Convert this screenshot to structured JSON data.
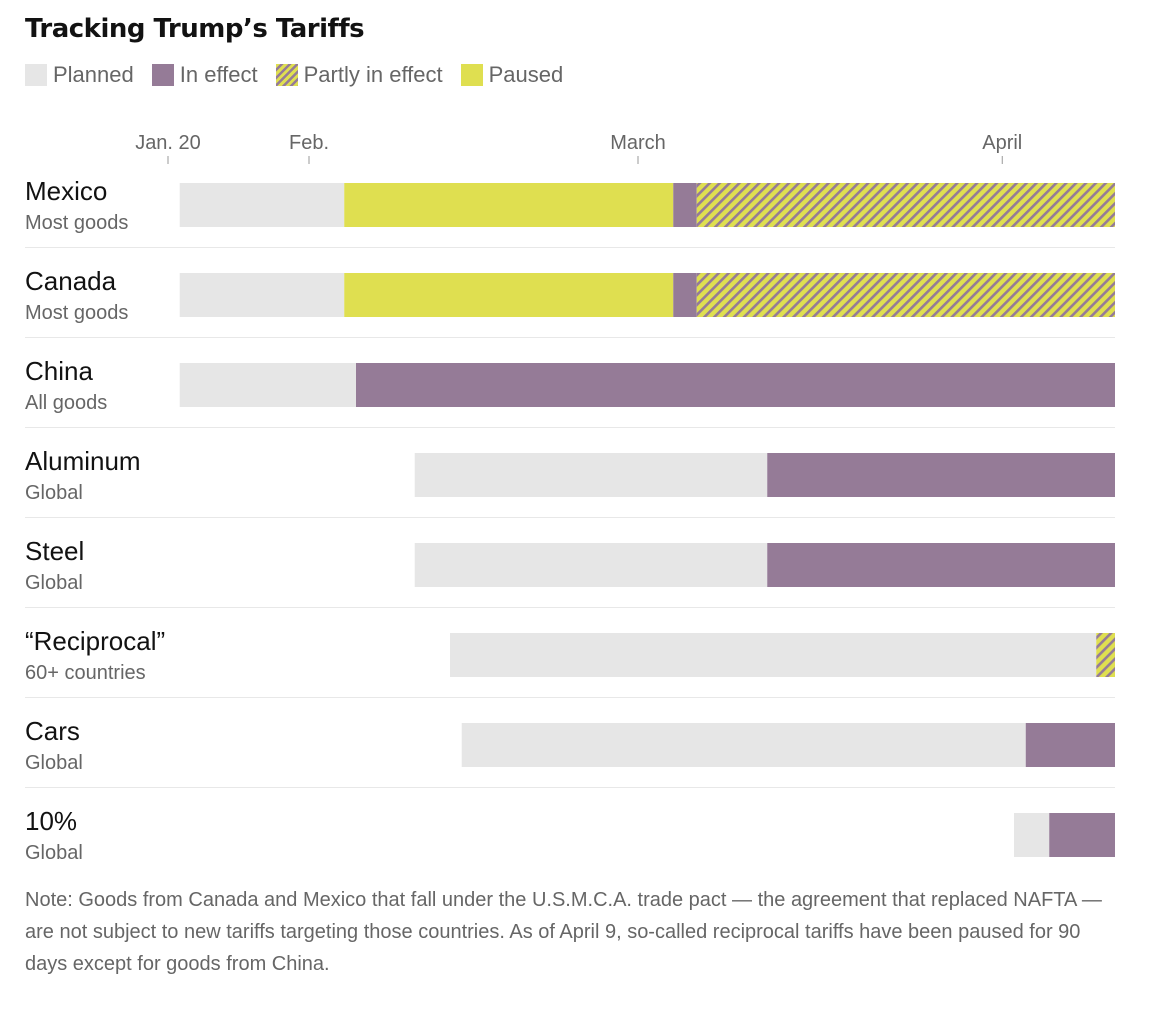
{
  "title": "Tracking Trump’s Tariffs",
  "legend": [
    {
      "key": "planned",
      "label": "Planned"
    },
    {
      "key": "in_effect",
      "label": "In effect"
    },
    {
      "key": "partly",
      "label": "Partly in effect"
    },
    {
      "key": "paused",
      "label": "Paused"
    }
  ],
  "note": "Note: Goods from Canada and Mexico that fall under the U.S.M.C.A. trade pact — the agreement that replaced NAFTA — are not subject to new tariffs targeting those countries. As of April 9, so-called reciprocal tariffs have been paused for 90 days except for goods from China.",
  "colors": {
    "planned": "#e6e6e6",
    "in_effect": "#957b97",
    "paused": "#dfdf50",
    "partly_stripe": "#957b97",
    "partly_base": "#dfdf50"
  },
  "chart_data": {
    "type": "bar",
    "orientation": "horizontal-timeline",
    "x_axis": {
      "ticks": [
        {
          "label": "Jan. 20",
          "date": "2025-01-20"
        },
        {
          "label": "Feb.",
          "date": "2025-02-01"
        },
        {
          "label": "March",
          "date": "2025-03-01"
        },
        {
          "label": "April",
          "date": "2025-04-01"
        }
      ],
      "range": [
        "2025-01-20",
        "2025-04-12"
      ]
    },
    "series": [
      {
        "key": "planned",
        "name": "Planned"
      },
      {
        "key": "in_effect",
        "name": "In effect"
      },
      {
        "key": "partly",
        "name": "Partly in effect"
      },
      {
        "key": "paused",
        "name": "Paused"
      }
    ],
    "rows": [
      {
        "name": "Mexico",
        "sub": "Most goods",
        "segments": [
          {
            "status": "planned",
            "start": "2025-01-21",
            "end": "2025-02-04"
          },
          {
            "status": "paused",
            "start": "2025-02-04",
            "end": "2025-03-04"
          },
          {
            "status": "in_effect",
            "start": "2025-03-04",
            "end": "2025-03-06"
          },
          {
            "status": "partly",
            "start": "2025-03-06",
            "end": "2025-04-12"
          }
        ]
      },
      {
        "name": "Canada",
        "sub": "Most goods",
        "segments": [
          {
            "status": "planned",
            "start": "2025-01-21",
            "end": "2025-02-04"
          },
          {
            "status": "paused",
            "start": "2025-02-04",
            "end": "2025-03-04"
          },
          {
            "status": "in_effect",
            "start": "2025-03-04",
            "end": "2025-03-06"
          },
          {
            "status": "partly",
            "start": "2025-03-06",
            "end": "2025-04-12"
          }
        ]
      },
      {
        "name": "China",
        "sub": "All goods",
        "segments": [
          {
            "status": "planned",
            "start": "2025-01-21",
            "end": "2025-02-05"
          },
          {
            "status": "in_effect",
            "start": "2025-02-05",
            "end": "2025-04-12"
          }
        ]
      },
      {
        "name": "Aluminum",
        "sub": "Global",
        "segments": [
          {
            "status": "planned",
            "start": "2025-02-10",
            "end": "2025-03-12"
          },
          {
            "status": "in_effect",
            "start": "2025-03-12",
            "end": "2025-04-12"
          }
        ]
      },
      {
        "name": "Steel",
        "sub": "Global",
        "segments": [
          {
            "status": "planned",
            "start": "2025-02-10",
            "end": "2025-03-12"
          },
          {
            "status": "in_effect",
            "start": "2025-03-12",
            "end": "2025-04-12"
          }
        ]
      },
      {
        "name": "“Reciprocal”",
        "sub": "60+ countries",
        "segments": [
          {
            "status": "planned",
            "start": "2025-02-13",
            "end": "2025-04-09"
          },
          {
            "status": "partly",
            "start": "2025-04-09",
            "end": "2025-04-12"
          }
        ]
      },
      {
        "name": "Cars",
        "sub": "Global",
        "segments": [
          {
            "status": "planned",
            "start": "2025-02-14",
            "end": "2025-04-03"
          },
          {
            "status": "in_effect",
            "start": "2025-04-03",
            "end": "2025-04-12"
          }
        ]
      },
      {
        "name": "10%",
        "sub": "Global",
        "segments": [
          {
            "status": "planned",
            "start": "2025-04-02",
            "end": "2025-04-05"
          },
          {
            "status": "in_effect",
            "start": "2025-04-05",
            "end": "2025-04-12"
          }
        ]
      }
    ]
  }
}
